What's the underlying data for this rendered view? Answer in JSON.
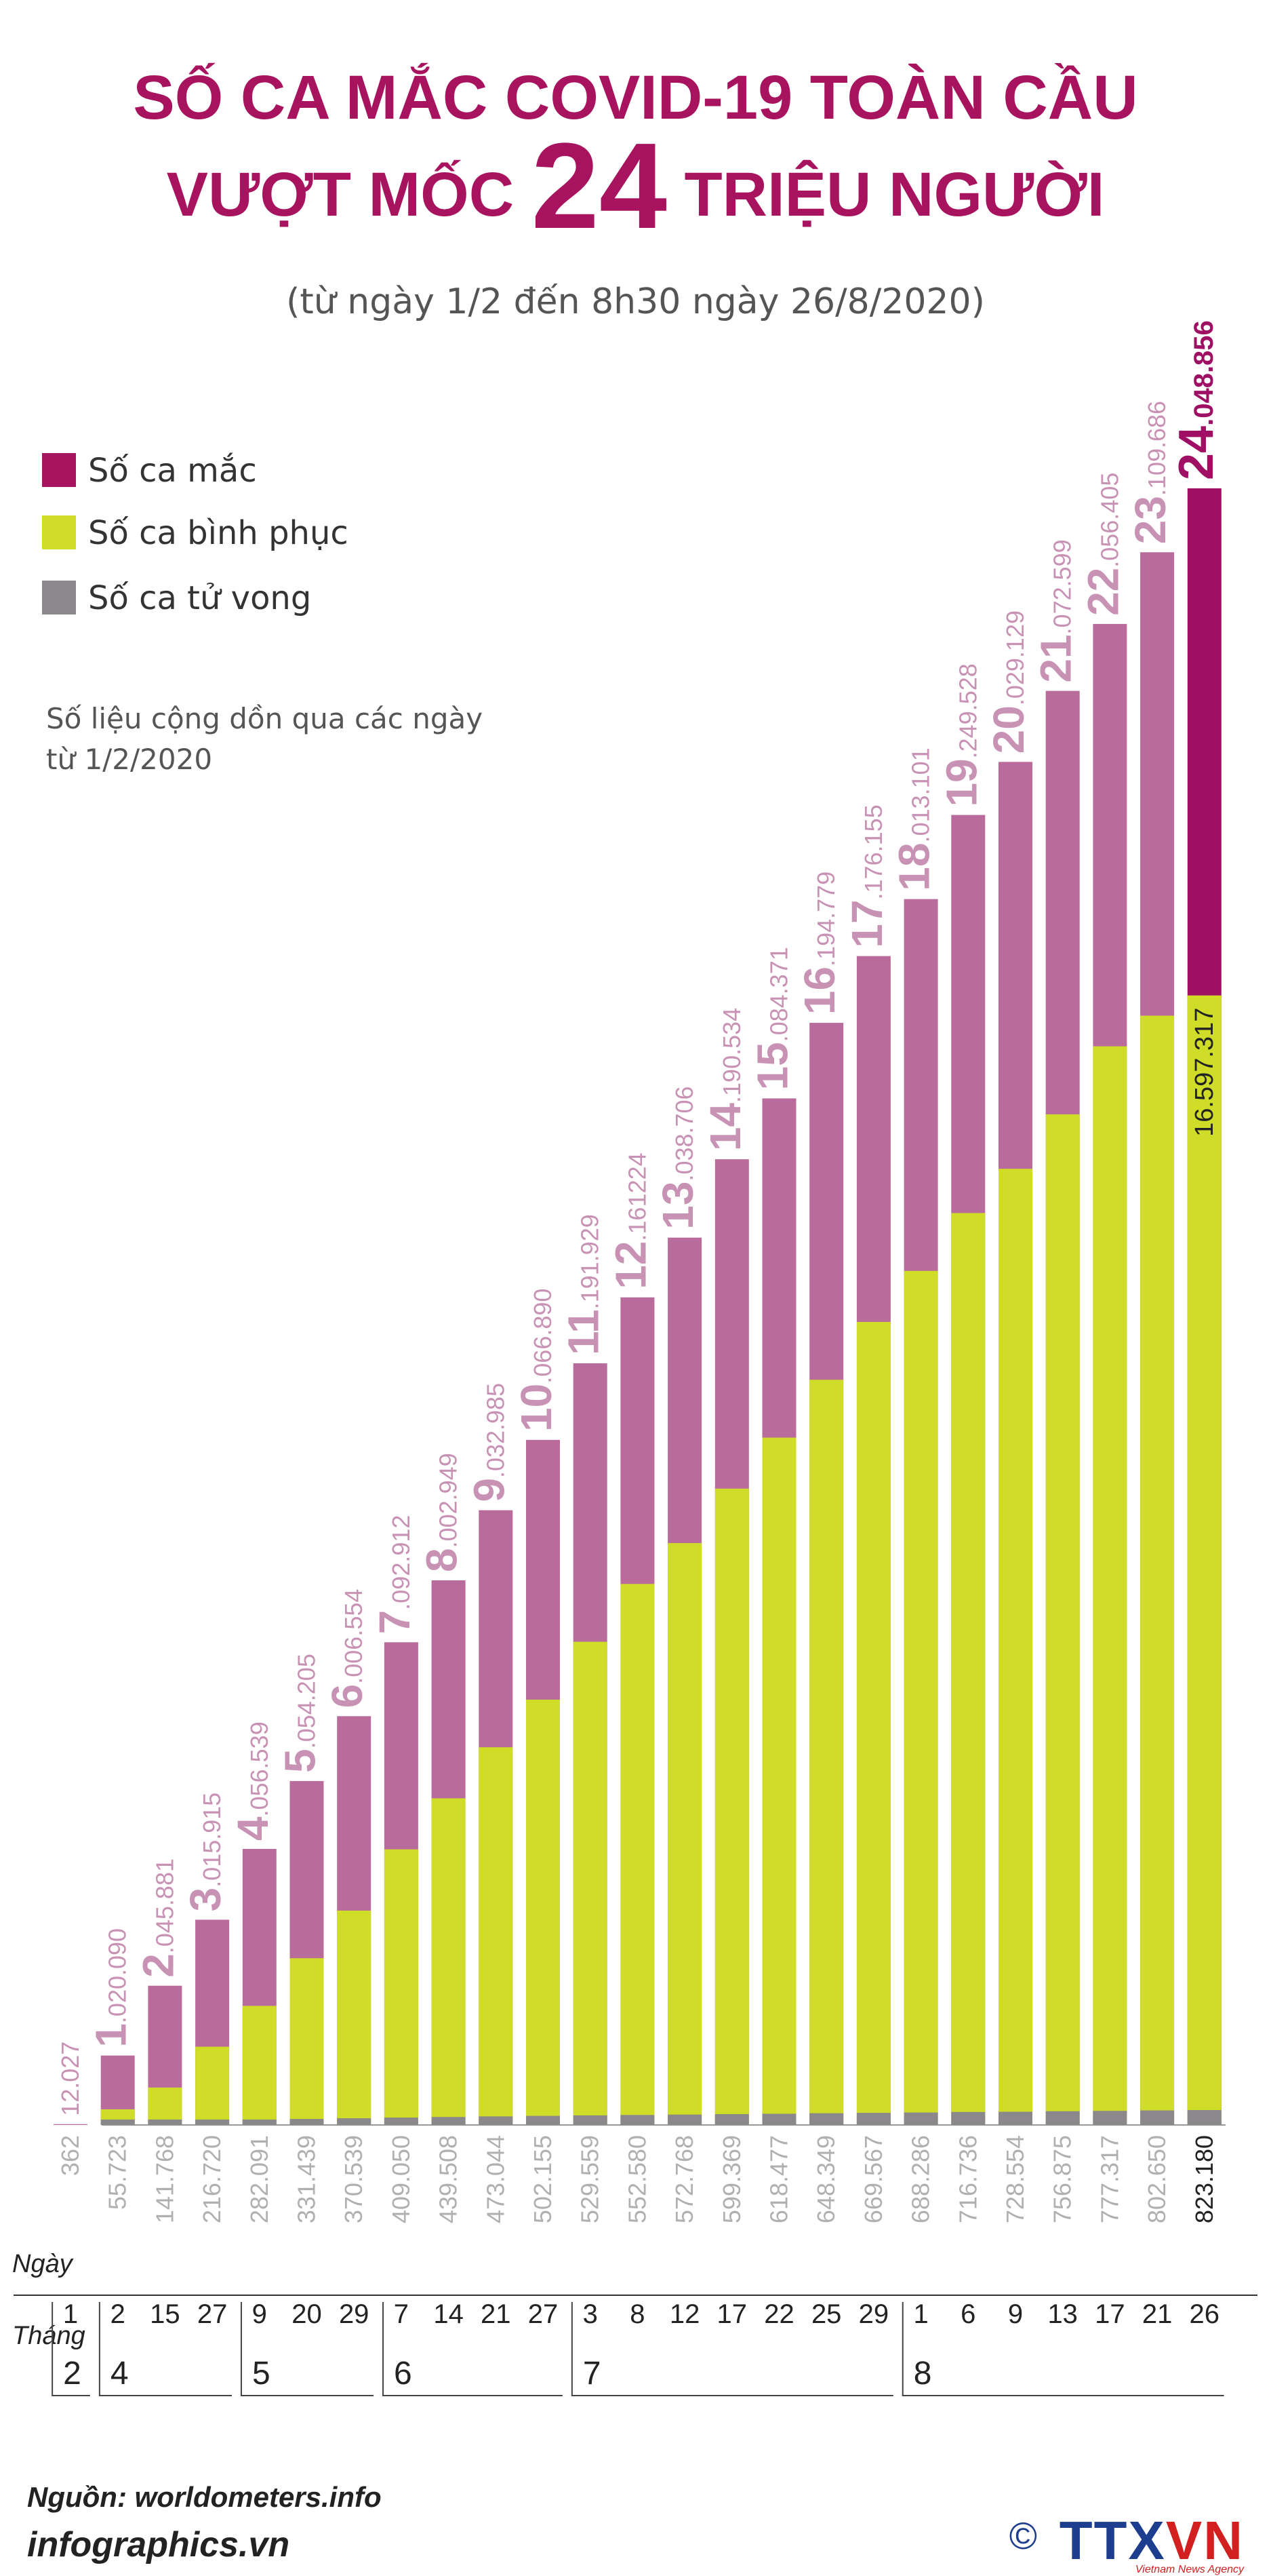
{
  "title_line1": "SỐ CA MẮC COVID-19 TOÀN CẦU",
  "title_line2_pre": "VƯỢT MỐC ",
  "title_line2_big": "24",
  "title_line2_post": " TRIỆU NGƯỜI",
  "subtitle": "(từ ngày 1/2 đến 8h30 ngày 26/8/2020)",
  "legend": [
    {
      "label": "Số ca mắc",
      "color": "#a8135f"
    },
    {
      "label": "Số ca bình phục",
      "color": "#cfdd28"
    },
    {
      "label": "Số ca tử vong",
      "color": "#8a888b"
    }
  ],
  "note": "Số liệu cộng dồn qua các ngày từ 1/2/2020",
  "axis_labels": {
    "day": "Ngày",
    "month": "Tháng"
  },
  "colors": {
    "cases_light": "#b96b9b",
    "cases_last": "#9f0f64",
    "recovered": "#cfdd28",
    "deaths": "#8a888b",
    "value_label": "#c892b5",
    "death_label": "#b0b0b0",
    "title": "#a8135f"
  },
  "chart_data": {
    "type": "bar",
    "title": "SỐ CA MẮC COVID-19 TOÀN CẦU VƯỢT MỐC 24 TRIỆU NGƯỜI",
    "subtitle": "(từ ngày 1/2 đến 8h30 ngày 26/8/2020)",
    "days": [
      "1",
      "2",
      "15",
      "27",
      "9",
      "20",
      "29",
      "7",
      "14",
      "21",
      "27",
      "3",
      "8",
      "12",
      "17",
      "22",
      "25",
      "29",
      "1",
      "6",
      "9",
      "13",
      "17",
      "21",
      "26"
    ],
    "months": [
      {
        "label": "2",
        "start": 0,
        "end": 0
      },
      {
        "label": "4",
        "start": 1,
        "end": 3
      },
      {
        "label": "5",
        "start": 4,
        "end": 6
      },
      {
        "label": "6",
        "start": 7,
        "end": 10
      },
      {
        "label": "7",
        "start": 11,
        "end": 17
      },
      {
        "label": "8",
        "start": 18,
        "end": 24
      }
    ],
    "series": [
      {
        "name": "Số ca mắc",
        "values": [
          12027,
          1020090,
          2045881,
          3015915,
          4056539,
          5054205,
          6006554,
          7092912,
          8002949,
          9032985,
          10066890,
          11191929,
          12161224,
          13038706,
          14190534,
          15084371,
          16194779,
          17176155,
          18013101,
          19249528,
          20029129,
          21072599,
          22056405,
          23109686,
          24048856
        ]
      },
      {
        "name": "Số ca bình phục",
        "values": [
          null,
          230000,
          550000,
          1150000,
          1750000,
          2450000,
          3150000,
          4050000,
          4800000,
          5550000,
          6250000,
          7100000,
          7950000,
          8550000,
          9350000,
          10100000,
          10950000,
          11800000,
          12550000,
          13400000,
          14050000,
          14850000,
          15850000,
          16300000,
          16597317
        ]
      },
      {
        "name": "Số ca tử vong",
        "values": [
          362,
          55723,
          141768,
          216720,
          282091,
          331439,
          370539,
          409050,
          439508,
          473044,
          502155,
          529559,
          552580,
          572768,
          599369,
          618477,
          648349,
          669567,
          688286,
          716736,
          728554,
          756875,
          777317,
          802650,
          823180
        ]
      }
    ],
    "case_labels": [
      {
        "big": "",
        "small": "12.027"
      },
      {
        "big": "1",
        "small": ".020.090"
      },
      {
        "big": "2",
        "small": ".045.881"
      },
      {
        "big": "3",
        "small": ".015.915"
      },
      {
        "big": "4",
        "small": ".056.539"
      },
      {
        "big": "5",
        "small": ".054.205"
      },
      {
        "big": "6",
        "small": ".006.554"
      },
      {
        "big": "7",
        "small": ".092.912"
      },
      {
        "big": "8",
        "small": ".002.949"
      },
      {
        "big": "9",
        "small": ".032.985"
      },
      {
        "big": "10",
        "small": ".066.890"
      },
      {
        "big": "11",
        "small": ".191.929"
      },
      {
        "big": "12",
        "small": ".161224"
      },
      {
        "big": "13",
        "small": ".038.706"
      },
      {
        "big": "14",
        "small": ".190.534"
      },
      {
        "big": "15",
        "small": ".084.371"
      },
      {
        "big": "16",
        "small": ".194.779"
      },
      {
        "big": "17",
        "small": ".176.155"
      },
      {
        "big": "18",
        "small": ".013.101"
      },
      {
        "big": "19",
        "small": ".249.528"
      },
      {
        "big": "20",
        "small": ".029.129"
      },
      {
        "big": "21",
        "small": ".072.599"
      },
      {
        "big": "22",
        "small": ".056.405"
      },
      {
        "big": "23",
        "small": ".109.686"
      },
      {
        "big": "24",
        "small": ".048.856"
      }
    ],
    "death_labels": [
      "362",
      "55.723",
      "141.768",
      "216.720",
      "282.091",
      "331.439",
      "370.539",
      "409.050",
      "439.508",
      "473.044",
      "502.155",
      "529.559",
      "552.580",
      "572.768",
      "599.369",
      "618.477",
      "648.349",
      "669.567",
      "688.286",
      "716.736",
      "728.554",
      "756.875",
      "777.317",
      "802.650",
      "823.180"
    ],
    "recovered_label_last": "16.597.317",
    "ylim": [
      0,
      24048856
    ],
    "grid": false,
    "legend_position": "top-left"
  },
  "source": {
    "label": "Nguồn: worldometers.info"
  },
  "site": "infographics.vn",
  "logo": {
    "text_a": "TTX",
    "text_b": "VN",
    "tagline": "Vietnam News Agency",
    "copyright": "©"
  }
}
